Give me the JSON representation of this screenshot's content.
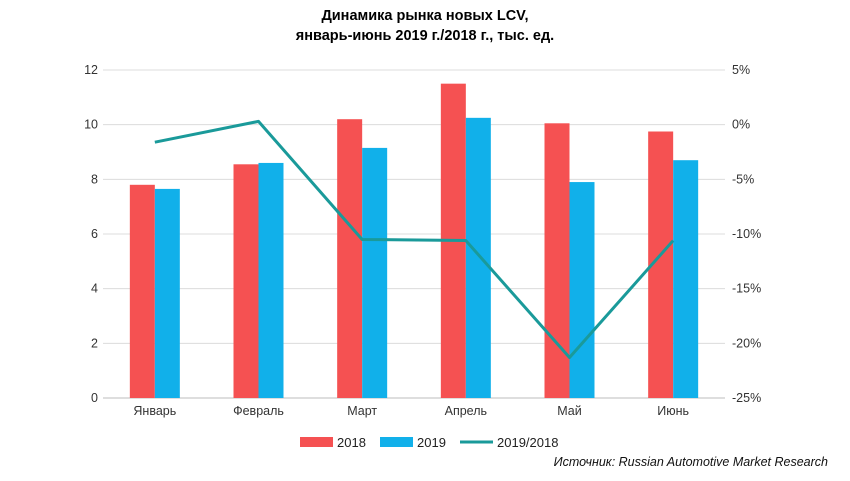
{
  "chart_data": {
    "type": "bar",
    "title_line1": "Динамика рынка новых LCV,",
    "title_line2": "январь-июнь 2019 г./2018 г., тыс. ед.",
    "categories": [
      "Январь",
      "Февраль",
      "Март",
      "Апрель",
      "Май",
      "Июнь"
    ],
    "series": [
      {
        "name": "2018",
        "type": "bar",
        "axis": "left",
        "color": "#f55152",
        "values": [
          7.8,
          8.55,
          10.2,
          11.5,
          10.05,
          9.75
        ]
      },
      {
        "name": "2019",
        "type": "bar",
        "axis": "left",
        "color": "#11b0ea",
        "values": [
          7.65,
          8.6,
          9.15,
          10.25,
          7.9,
          8.7
        ]
      },
      {
        "name": "2019/2018",
        "type": "line",
        "axis": "right",
        "color": "#1a9a9a",
        "values": [
          -1.6,
          0.3,
          -10.5,
          -10.6,
          -21.3,
          -10.6
        ]
      }
    ],
    "left_axis": {
      "min": 0,
      "max": 12,
      "ticks": [
        "0",
        "2",
        "4",
        "6",
        "8",
        "10",
        "12"
      ]
    },
    "right_axis": {
      "min": -25,
      "max": 5,
      "ticks": [
        "-25%",
        "-20%",
        "-15%",
        "-10%",
        "-5%",
        "0%",
        "5%"
      ]
    },
    "grid": true,
    "legend_position": "bottom"
  },
  "source": "Источник: Russian Automotive Market Research"
}
